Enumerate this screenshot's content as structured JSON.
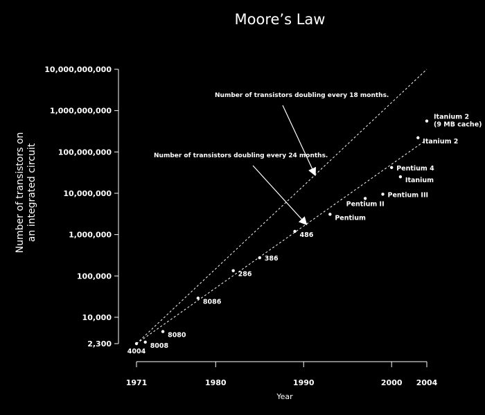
{
  "chart_data": {
    "type": "scatter",
    "title": "Moore’s Law",
    "xlabel": "Year",
    "ylabel_lines": [
      "Number of transistors on",
      "an integrated circuit"
    ],
    "yscale": "log",
    "xlim": [
      1971,
      2004
    ],
    "ylim": [
      2300,
      10000000000
    ],
    "y_ticks": [
      {
        "value": 2300,
        "label": "2,300"
      },
      {
        "value": 10000,
        "label": "10,000"
      },
      {
        "value": 100000,
        "label": "100,000"
      },
      {
        "value": 1000000,
        "label": "1,000,000"
      },
      {
        "value": 10000000,
        "label": "10,000,000"
      },
      {
        "value": 100000000,
        "label": "100,000,000"
      },
      {
        "value": 1000000000,
        "label": "1,000,000,000"
      },
      {
        "value": 10000000000,
        "label": "10,000,000,000"
      }
    ],
    "x_ticks": [
      {
        "value": 1971,
        "label": "1971"
      },
      {
        "value": 1980,
        "label": "1980"
      },
      {
        "value": 1990,
        "label": "1990"
      },
      {
        "value": 2000,
        "label": "2000"
      },
      {
        "value": 2004,
        "label": "2004"
      }
    ],
    "points": [
      {
        "x": 1971,
        "y": 2300,
        "label": "4004",
        "anchor": "below"
      },
      {
        "x": 1972,
        "y": 2500,
        "label": "8008",
        "anchor": "right-low"
      },
      {
        "x": 1974,
        "y": 4500,
        "label": "8080",
        "anchor": "right-low"
      },
      {
        "x": 1978,
        "y": 29000,
        "label": "8086",
        "anchor": "right-low"
      },
      {
        "x": 1982,
        "y": 134000,
        "label": "286",
        "anchor": "right-low"
      },
      {
        "x": 1985,
        "y": 275000,
        "label": "386",
        "anchor": "right"
      },
      {
        "x": 1989,
        "y": 1200000,
        "label": "486",
        "anchor": "right-low"
      },
      {
        "x": 1993,
        "y": 3100000,
        "label": "Pentium",
        "anchor": "right-low"
      },
      {
        "x": 1997,
        "y": 7500000,
        "label": "Pentium II",
        "anchor": "below-left"
      },
      {
        "x": 1999,
        "y": 9500000,
        "label": "Pentium III",
        "anchor": "right"
      },
      {
        "x": 2000,
        "y": 42000000,
        "label": "Pentium 4",
        "anchor": "right"
      },
      {
        "x": 2001,
        "y": 25000000,
        "label": "Itanium",
        "anchor": "right-low"
      },
      {
        "x": 2003,
        "y": 220000000,
        "label": "Itanium 2",
        "anchor": "right-low"
      },
      {
        "x": 2004,
        "y": 560000000,
        "label": "Itanium 2",
        "label2": "(9 MB cache)",
        "anchor": "right-top"
      }
    ],
    "trend_lines": [
      {
        "x": [
          1971,
          2004
        ],
        "y": [
          2300,
          10000000000
        ],
        "label": "Number of transistors doubling every 18 months."
      },
      {
        "x": [
          1971,
          2004
        ],
        "y": [
          2300,
          200000000
        ],
        "label": "Number of transistors doubling every 24 months."
      }
    ]
  }
}
